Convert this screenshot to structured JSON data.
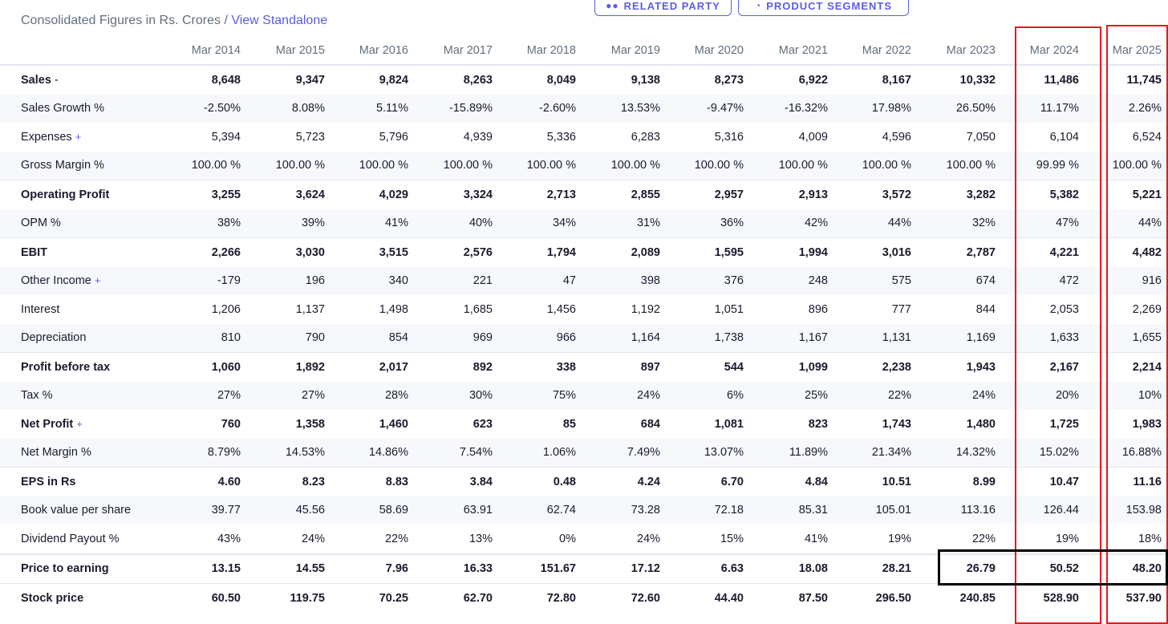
{
  "header": {
    "subtitle": "Consolidated Figures in Rs. Crores / ",
    "view_standalone_link": "View Standalone",
    "related_party_label": "RELATED PARTY",
    "product_segments_label": "PRODUCT SEGMENTS"
  },
  "table": {
    "columns": [
      "Mar 2014",
      "Mar 2015",
      "Mar 2016",
      "Mar 2017",
      "Mar 2018",
      "Mar 2019",
      "Mar 2020",
      "Mar 2021",
      "Mar 2022",
      "Mar 2023",
      "Mar 2024",
      "Mar 2025"
    ],
    "rows": [
      {
        "label": "Sales",
        "suffix": "-",
        "values": [
          "8,648",
          "9,347",
          "9,824",
          "8,263",
          "8,049",
          "9,138",
          "8,273",
          "6,922",
          "8,167",
          "10,332",
          "11,486",
          "11,745"
        ]
      },
      {
        "label": "Sales Growth %",
        "values": [
          "-2.50%",
          "8.08%",
          "5.11%",
          "-15.89%",
          "-2.60%",
          "13.53%",
          "-9.47%",
          "-16.32%",
          "17.98%",
          "26.50%",
          "11.17%",
          "2.26%"
        ]
      },
      {
        "label": "Expenses",
        "suffix": "+",
        "values": [
          "5,394",
          "5,723",
          "5,796",
          "4,939",
          "5,336",
          "6,283",
          "5,316",
          "4,009",
          "4,596",
          "7,050",
          "6,104",
          "6,524"
        ]
      },
      {
        "label": "Gross Margin %",
        "values": [
          "100.00 %",
          "100.00 %",
          "100.00 %",
          "100.00 %",
          "100.00 %",
          "100.00 %",
          "100.00 %",
          "100.00 %",
          "100.00 %",
          "100.00 %",
          "99.99 %",
          "100.00 %"
        ]
      },
      {
        "label": "Operating Profit",
        "values": [
          "3,255",
          "3,624",
          "4,029",
          "3,324",
          "2,713",
          "2,855",
          "2,957",
          "2,913",
          "3,572",
          "3,282",
          "5,382",
          "5,221"
        ]
      },
      {
        "label": "OPM %",
        "values": [
          "38%",
          "39%",
          "41%",
          "40%",
          "34%",
          "31%",
          "36%",
          "42%",
          "44%",
          "32%",
          "47%",
          "44%"
        ]
      },
      {
        "label": "EBIT",
        "values": [
          "2,266",
          "3,030",
          "3,515",
          "2,576",
          "1,794",
          "2,089",
          "1,595",
          "1,994",
          "3,016",
          "2,787",
          "4,221",
          "4,482"
        ]
      },
      {
        "label": "Other Income",
        "suffix": "+",
        "values": [
          "-179",
          "196",
          "340",
          "221",
          "47",
          "398",
          "376",
          "248",
          "575",
          "674",
          "472",
          "916"
        ]
      },
      {
        "label": "Interest",
        "values": [
          "1,206",
          "1,137",
          "1,498",
          "1,685",
          "1,456",
          "1,192",
          "1,051",
          "896",
          "777",
          "844",
          "2,053",
          "2,269"
        ]
      },
      {
        "label": "Depreciation",
        "values": [
          "810",
          "790",
          "854",
          "969",
          "966",
          "1,164",
          "1,738",
          "1,167",
          "1,131",
          "1,169",
          "1,633",
          "1,655"
        ]
      },
      {
        "label": "Profit before tax",
        "values": [
          "1,060",
          "1,892",
          "2,017",
          "892",
          "338",
          "897",
          "544",
          "1,099",
          "2,238",
          "1,943",
          "2,167",
          "2,214"
        ]
      },
      {
        "label": "Tax %",
        "values": [
          "27%",
          "27%",
          "28%",
          "30%",
          "75%",
          "24%",
          "6%",
          "25%",
          "22%",
          "24%",
          "20%",
          "10%"
        ]
      },
      {
        "label": "Net Profit",
        "suffix": "+",
        "values": [
          "760",
          "1,358",
          "1,460",
          "623",
          "85",
          "684",
          "1,081",
          "823",
          "1,743",
          "1,480",
          "1,725",
          "1,983"
        ]
      },
      {
        "label": "Net Margin %",
        "values": [
          "8.79%",
          "14.53%",
          "14.86%",
          "7.54%",
          "1.06%",
          "7.49%",
          "13.07%",
          "11.89%",
          "21.34%",
          "14.32%",
          "15.02%",
          "16.88%"
        ]
      },
      {
        "label": "EPS in Rs",
        "values": [
          "4.60",
          "8.23",
          "8.83",
          "3.84",
          "0.48",
          "4.24",
          "6.70",
          "4.84",
          "10.51",
          "8.99",
          "10.47",
          "11.16"
        ]
      },
      {
        "label": "Book value per share",
        "values": [
          "39.77",
          "45.56",
          "58.69",
          "63.91",
          "62.74",
          "73.28",
          "72.18",
          "85.31",
          "105.01",
          "113.16",
          "126.44",
          "153.98"
        ]
      },
      {
        "label": "Dividend Payout %",
        "values": [
          "43%",
          "24%",
          "22%",
          "13%",
          "0%",
          "24%",
          "15%",
          "41%",
          "19%",
          "22%",
          "19%",
          "18%"
        ]
      },
      {
        "label": "Price to earning",
        "values": [
          "13.15",
          "14.55",
          "7.96",
          "16.33",
          "151.67",
          "17.12",
          "6.63",
          "18.08",
          "28.21",
          "26.79",
          "50.52",
          "48.20"
        ]
      },
      {
        "label": "Stock price",
        "values": [
          "60.50",
          "119.75",
          "70.25",
          "62.70",
          "72.80",
          "72.60",
          "44.40",
          "87.50",
          "296.50",
          "240.85",
          "528.90",
          "537.90"
        ]
      }
    ]
  },
  "colors": {
    "accent": "#5b5ce2",
    "highlight_red": "#e8181f",
    "highlight_black": "#000000",
    "alt_row": "#f6f8fc"
  }
}
